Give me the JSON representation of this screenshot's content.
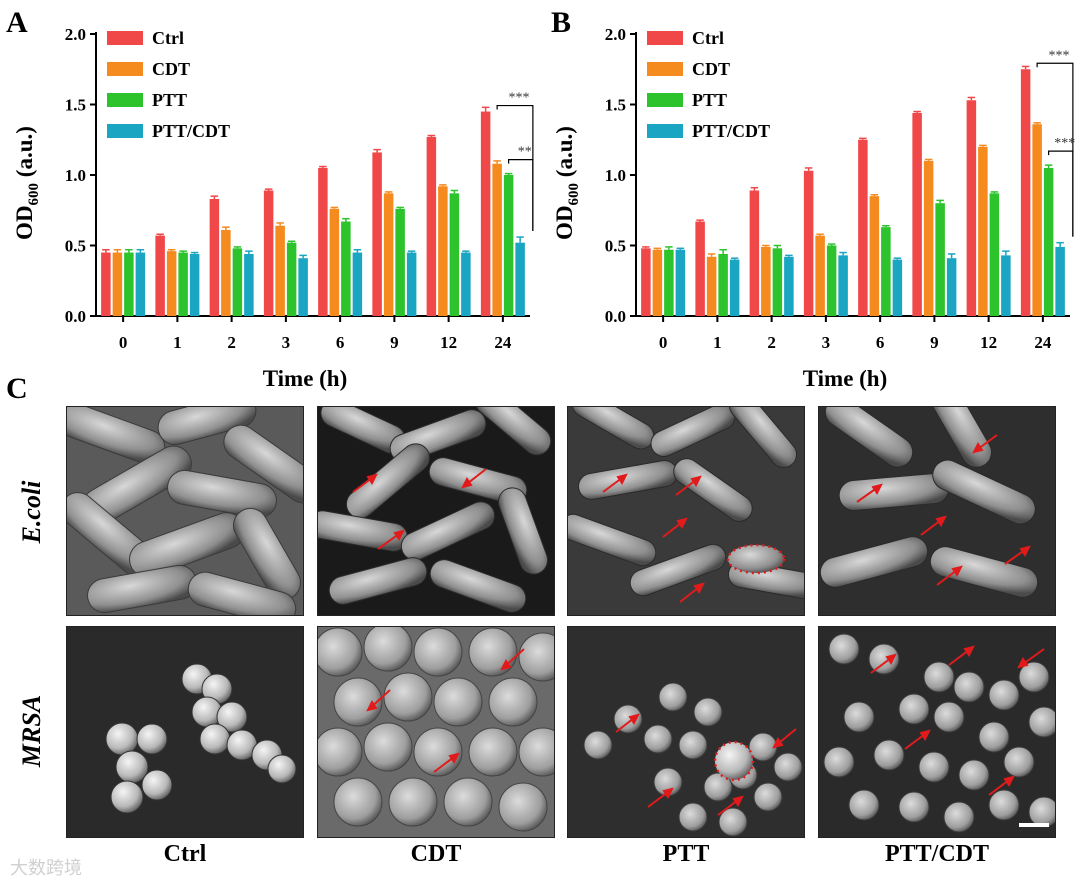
{
  "panels": {
    "a": "A",
    "b": "B",
    "c": "C"
  },
  "colors": {
    "Ctrl": "#f04848",
    "CDT": "#f58a1f",
    "PTT": "#2cc32c",
    "PTT/CDT": "#1aa5c2",
    "arrow": "#e11b1b"
  },
  "chart_data": [
    {
      "type": "bar",
      "panel": "A",
      "xlabel": "Time (h)",
      "ylabel_main": "OD",
      "ylabel_sub": "600",
      "ylabel_unit": " (a.u.)",
      "ylim": [
        0,
        2.0
      ],
      "yticks": [
        "0.0",
        "0.5",
        "1.0",
        "1.5",
        "2.0"
      ],
      "categories": [
        "0",
        "1",
        "2",
        "3",
        "6",
        "9",
        "12",
        "24"
      ],
      "legend_position": "top-left",
      "series": [
        {
          "name": "Ctrl",
          "values": [
            0.45,
            0.57,
            0.83,
            0.89,
            1.05,
            1.16,
            1.27,
            1.45
          ],
          "errors": [
            0.02,
            0.01,
            0.02,
            0.01,
            0.01,
            0.02,
            0.01,
            0.03
          ]
        },
        {
          "name": "CDT",
          "values": [
            0.45,
            0.46,
            0.61,
            0.64,
            0.76,
            0.87,
            0.92,
            1.08
          ],
          "errors": [
            0.02,
            0.01,
            0.02,
            0.02,
            0.01,
            0.01,
            0.01,
            0.02
          ]
        },
        {
          "name": "PTT",
          "values": [
            0.45,
            0.45,
            0.48,
            0.52,
            0.67,
            0.76,
            0.87,
            1.0
          ],
          "errors": [
            0.02,
            0.01,
            0.01,
            0.01,
            0.02,
            0.01,
            0.02,
            0.01
          ]
        },
        {
          "name": "PTT/CDT",
          "values": [
            0.45,
            0.44,
            0.44,
            0.41,
            0.45,
            0.45,
            0.45,
            0.52
          ],
          "errors": [
            0.02,
            0.01,
            0.02,
            0.02,
            0.02,
            0.01,
            0.01,
            0.04
          ]
        }
      ],
      "significance": [
        {
          "label": "***",
          "pair": [
            "CDT",
            "PTT/CDT"
          ]
        },
        {
          "label": "**",
          "pair": [
            "PTT",
            "PTT/CDT"
          ]
        }
      ]
    },
    {
      "type": "bar",
      "panel": "B",
      "xlabel": "Time (h)",
      "ylabel_main": "OD",
      "ylabel_sub": "600",
      "ylabel_unit": " (a.u.)",
      "ylim": [
        0,
        2.0
      ],
      "yticks": [
        "0.0",
        "0.5",
        "1.0",
        "1.5",
        "2.0"
      ],
      "categories": [
        "0",
        "1",
        "2",
        "3",
        "6",
        "9",
        "12",
        "24"
      ],
      "legend_position": "top-left",
      "series": [
        {
          "name": "Ctrl",
          "values": [
            0.48,
            0.67,
            0.89,
            1.03,
            1.25,
            1.44,
            1.53,
            1.75
          ],
          "errors": [
            0.01,
            0.01,
            0.02,
            0.02,
            0.01,
            0.01,
            0.02,
            0.02
          ]
        },
        {
          "name": "CDT",
          "values": [
            0.47,
            0.42,
            0.49,
            0.57,
            0.85,
            1.1,
            1.2,
            1.36
          ],
          "errors": [
            0.01,
            0.02,
            0.01,
            0.01,
            0.01,
            0.01,
            0.01,
            0.01
          ]
        },
        {
          "name": "PTT",
          "values": [
            0.47,
            0.44,
            0.48,
            0.5,
            0.63,
            0.8,
            0.87,
            1.05
          ],
          "errors": [
            0.02,
            0.03,
            0.02,
            0.01,
            0.01,
            0.02,
            0.01,
            0.02
          ]
        },
        {
          "name": "PTT/CDT",
          "values": [
            0.47,
            0.4,
            0.42,
            0.43,
            0.4,
            0.41,
            0.43,
            0.49
          ],
          "errors": [
            0.01,
            0.01,
            0.01,
            0.02,
            0.01,
            0.03,
            0.03,
            0.03
          ]
        }
      ],
      "significance": [
        {
          "label": "***",
          "pair": [
            "CDT",
            "PTT/CDT"
          ]
        },
        {
          "label": "***",
          "pair": [
            "PTT",
            "PTT/CDT"
          ]
        }
      ]
    }
  ],
  "sem": {
    "rows": [
      "E.coli",
      "MRSA"
    ],
    "columns": [
      "Ctrl",
      "CDT",
      "PTT",
      "PTT/CDT"
    ]
  },
  "watermark": "大数跨境"
}
